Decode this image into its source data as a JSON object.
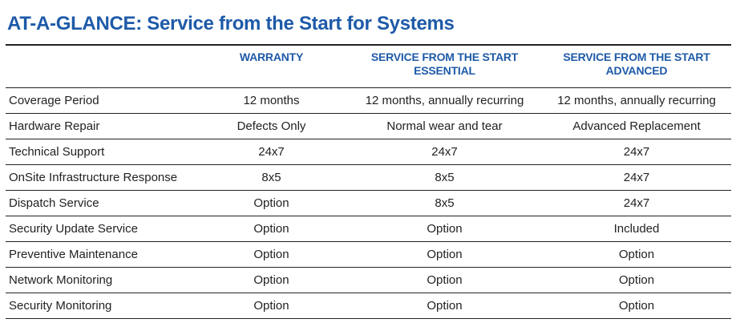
{
  "title": "AT-A-GLANCE: Service from the Start for Systems",
  "columns": [
    "",
    "WARRANTY",
    "SERVICE FROM THE START ESSENTIAL",
    "SERVICE FROM THE START ADVANCED"
  ],
  "rows": [
    {
      "feature": "Coverage Period",
      "warranty": "12 months",
      "essential": "12 months, annually recurring",
      "advanced": "12 months, annually recurring"
    },
    {
      "feature": "Hardware Repair",
      "warranty": "Defects Only",
      "essential": "Normal wear and tear",
      "advanced": "Advanced Replacement"
    },
    {
      "feature": "Technical Support",
      "warranty": "24x7",
      "essential": "24x7",
      "advanced": "24x7"
    },
    {
      "feature": "OnSite Infrastructure Response",
      "warranty": "8x5",
      "essential": "8x5",
      "advanced": "24x7"
    },
    {
      "feature": "Dispatch Service",
      "warranty": "Option",
      "essential": "8x5",
      "advanced": "24x7"
    },
    {
      "feature": "Security Update Service",
      "warranty": "Option",
      "essential": "Option",
      "advanced": "Included"
    },
    {
      "feature": "Preventive Maintenance",
      "warranty": "Option",
      "essential": "Option",
      "advanced": "Option"
    },
    {
      "feature": "Network Monitoring",
      "warranty": "Option",
      "essential": "Option",
      "advanced": "Option"
    },
    {
      "feature": "Security Monitoring",
      "warranty": "Option",
      "essential": "Option",
      "advanced": "Option"
    }
  ],
  "colors": {
    "title": "#1e5aa8",
    "header": "#1e5aa8",
    "text": "#222222",
    "rule": "#222222"
  }
}
